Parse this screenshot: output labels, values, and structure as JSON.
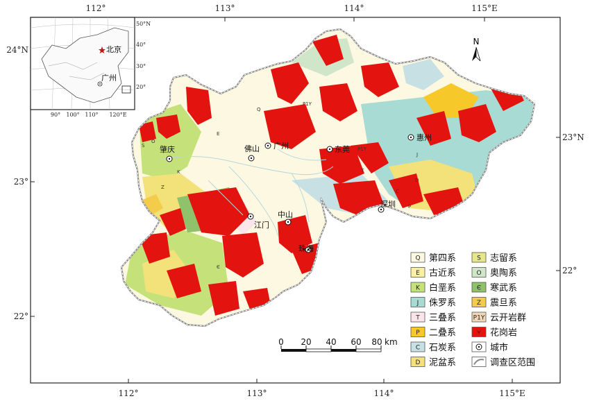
{
  "axes": {
    "top_ticks": [
      "112°",
      "113°",
      "114°",
      "115°E"
    ],
    "bottom_ticks": [
      "112°",
      "113°",
      "114°",
      "115°E"
    ],
    "left_ticks": [
      "24°N",
      "23°",
      "22°"
    ],
    "right_ticks": [
      "23°N",
      "22°"
    ]
  },
  "north_arrow": {
    "label": "N"
  },
  "inset": {
    "lat_ticks": [
      "50°N",
      "40°",
      "30°",
      "20°"
    ],
    "lon_ticks": [
      "90°",
      "100°",
      "110°",
      "120°E"
    ],
    "cities": [
      {
        "name": "北京",
        "symbol": "star"
      },
      {
        "name": "广州",
        "symbol": "city"
      }
    ]
  },
  "cities": [
    "肇庆",
    "佛山",
    "广州",
    "东莞",
    "惠州",
    "江门",
    "中山",
    "珠海",
    "深圳"
  ],
  "formation_codes": [
    "Q",
    "E",
    "K",
    "J",
    "T",
    "P",
    "C",
    "D",
    "S",
    "O",
    "Є",
    "Z",
    "P1Y"
  ],
  "legend": {
    "items": [
      {
        "code": "Q",
        "name": "第四系",
        "color": "#fdf8e1"
      },
      {
        "code": "E",
        "name": "古近系",
        "color": "#fbefa5"
      },
      {
        "code": "K",
        "name": "白垩系",
        "color": "#c5e27a"
      },
      {
        "code": "J",
        "name": "侏罗系",
        "color": "#a8dbd3"
      },
      {
        "code": "T",
        "name": "三叠系",
        "color": "#fbe4ea"
      },
      {
        "code": "P",
        "name": "二叠系",
        "color": "#f7c82a"
      },
      {
        "code": "C",
        "name": "石炭系",
        "color": "#c7e0e4"
      },
      {
        "code": "D",
        "name": "泥盆系",
        "color": "#f3e27a"
      },
      {
        "code": "S",
        "name": "志留系",
        "color": "#e6e68a"
      },
      {
        "code": "O",
        "name": "奥陶系",
        "color": "#cfe6c9"
      },
      {
        "code": "Є",
        "name": "寒武系",
        "color": "#8fc26a"
      },
      {
        "code": "Z",
        "name": "震旦系",
        "color": "#f2cc4a"
      },
      {
        "code": "P1Y",
        "name": "云开岩群",
        "color": "#f1d7b8"
      },
      {
        "code": "",
        "name": "花岗岩",
        "color": "#e3140f"
      },
      {
        "code": "",
        "name": "城市",
        "color": "#ffffff"
      },
      {
        "code": "",
        "name": "调查区范围",
        "color": "#ffffff"
      }
    ]
  },
  "scale_bar": {
    "ticks": [
      "0",
      "20",
      "40",
      "60",
      "80"
    ],
    "unit": "km"
  }
}
